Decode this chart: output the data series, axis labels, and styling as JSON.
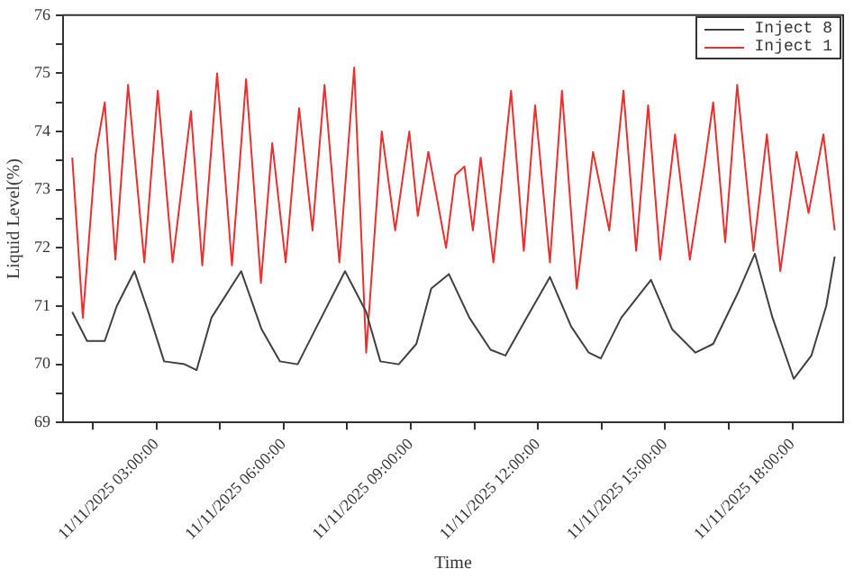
{
  "chart_data": {
    "type": "line",
    "xlabel": "Time",
    "ylabel": "Liquid Level(%)",
    "xlim": [
      "2025-11-11T00:48",
      "2025-11-11T19:12"
    ],
    "ylim": [
      69,
      76
    ],
    "xticks": [
      {
        "value": "2025-11-11T01:30",
        "label": null
      },
      {
        "value": "2025-11-11T03:00",
        "label": "11/11/2025 03:00:00"
      },
      {
        "value": "2025-11-11T04:30",
        "label": null
      },
      {
        "value": "2025-11-11T06:00",
        "label": "11/11/2025 06:00:00"
      },
      {
        "value": "2025-11-11T07:30",
        "label": null
      },
      {
        "value": "2025-11-11T09:00",
        "label": "11/11/2025 09:00:00"
      },
      {
        "value": "2025-11-11T10:30",
        "label": null
      },
      {
        "value": "2025-11-11T12:00",
        "label": "11/11/2025 12:00:00"
      },
      {
        "value": "2025-11-11T13:30",
        "label": null
      },
      {
        "value": "2025-11-11T15:00",
        "label": "11/11/2025 15:00:00"
      },
      {
        "value": "2025-11-11T16:30",
        "label": null
      },
      {
        "value": "2025-11-11T18:00",
        "label": "11/11/2025 18:00:00"
      }
    ],
    "yticks": [
      69,
      {
        "value": 69.5,
        "label": null
      },
      70,
      {
        "value": 70.5,
        "label": null
      },
      71,
      {
        "value": 71.5,
        "label": null
      },
      72,
      {
        "value": 72.5,
        "label": null
      },
      73,
      {
        "value": 73.5,
        "label": null
      },
      74,
      {
        "value": 74.5,
        "label": null
      },
      75,
      {
        "value": 75.5,
        "label": null
      },
      76
    ],
    "grid": false,
    "legend": "top right",
    "marker": "none",
    "line_style": "solid",
    "series": [
      {
        "name": "Inject 8",
        "color": "#404040",
        "x": [
          "2025-11-11T01:01",
          "2025-11-11T01:22",
          "2025-11-11T01:47",
          "2025-11-11T02:04",
          "2025-11-11T02:29",
          "2025-11-11T02:50",
          "2025-11-11T03:11",
          "2025-11-11T03:40",
          "2025-11-11T03:57",
          "2025-11-11T04:18",
          "2025-11-11T05:00",
          "2025-11-11T05:29",
          "2025-11-11T05:55",
          "2025-11-11T06:20",
          "2025-11-11T06:45",
          "2025-11-11T07:27",
          "2025-11-11T07:57",
          "2025-11-11T08:17",
          "2025-11-11T08:43",
          "2025-11-11T09:08",
          "2025-11-11T09:29",
          "2025-11-11T09:54",
          "2025-11-11T10:23",
          "2025-11-11T10:53",
          "2025-11-11T11:14",
          "2025-11-11T11:44",
          "2025-11-11T12:17",
          "2025-11-11T12:47",
          "2025-11-11T13:12",
          "2025-11-11T13:29",
          "2025-11-11T13:58",
          "2025-11-11T14:40",
          "2025-11-11T15:10",
          "2025-11-11T15:43",
          "2025-11-11T16:08",
          "2025-11-11T16:42",
          "2025-11-11T17:07",
          "2025-11-11T17:32",
          "2025-11-11T18:02",
          "2025-11-11T18:27",
          "2025-11-11T18:48",
          "2025-11-11T19:00"
        ],
        "values": [
          70.9,
          70.4,
          70.4,
          71.0,
          71.6,
          70.85,
          70.05,
          70.0,
          69.9,
          70.8,
          71.6,
          70.6,
          70.05,
          70.0,
          70.6,
          71.6,
          70.9,
          70.05,
          70.0,
          70.35,
          71.3,
          71.55,
          70.8,
          70.25,
          70.15,
          70.8,
          71.5,
          70.65,
          70.2,
          70.1,
          70.8,
          71.45,
          70.6,
          70.2,
          70.35,
          71.2,
          71.9,
          70.8,
          69.75,
          70.15,
          71.0,
          71.85
        ]
      },
      {
        "name": "Inject 1",
        "color": "#e8302f",
        "x": [
          "2025-11-11T01:01",
          "2025-11-11T01:16",
          "2025-11-11T01:34",
          "2025-11-11T01:47",
          "2025-11-11T02:02",
          "2025-11-11T02:20",
          "2025-11-11T02:43",
          "2025-11-11T03:02",
          "2025-11-11T03:23",
          "2025-11-11T03:49",
          "2025-11-11T04:05",
          "2025-11-11T04:26",
          "2025-11-11T04:47",
          "2025-11-11T05:07",
          "2025-11-11T05:28",
          "2025-11-11T05:44",
          "2025-11-11T06:03",
          "2025-11-11T06:22",
          "2025-11-11T06:41",
          "2025-11-11T06:58",
          "2025-11-11T07:19",
          "2025-11-11T07:40",
          "2025-11-11T07:57",
          "2025-11-11T08:19",
          "2025-11-11T08:38",
          "2025-11-11T08:58",
          "2025-11-11T09:10",
          "2025-11-11T09:25",
          "2025-11-11T09:50",
          "2025-11-11T10:03",
          "2025-11-11T10:16",
          "2025-11-11T10:28",
          "2025-11-11T10:39",
          "2025-11-11T10:57",
          "2025-11-11T11:22",
          "2025-11-11T11:40",
          "2025-11-11T11:56",
          "2025-11-11T12:17",
          "2025-11-11T12:34",
          "2025-11-11T12:55",
          "2025-11-11T13:18",
          "2025-11-11T13:41",
          "2025-11-11T14:01",
          "2025-11-11T14:19",
          "2025-11-11T14:36",
          "2025-11-11T14:53",
          "2025-11-11T15:14",
          "2025-11-11T15:35",
          "2025-11-11T15:56",
          "2025-11-11T16:08",
          "2025-11-11T16:25",
          "2025-11-11T16:42",
          "2025-11-11T17:05",
          "2025-11-11T17:24",
          "2025-11-11T17:43",
          "2025-11-11T18:06",
          "2025-11-11T18:23",
          "2025-11-11T18:44",
          "2025-11-11T19:00"
        ],
        "values": [
          73.55,
          70.8,
          73.6,
          74.5,
          71.8,
          74.8,
          71.75,
          74.7,
          71.75,
          74.35,
          71.7,
          75.0,
          71.7,
          74.9,
          71.4,
          73.8,
          71.75,
          74.4,
          72.3,
          74.8,
          71.75,
          75.1,
          70.2,
          74.0,
          72.3,
          74.0,
          72.55,
          73.65,
          72.0,
          73.25,
          73.4,
          72.3,
          73.55,
          71.75,
          74.7,
          71.95,
          74.45,
          71.75,
          74.7,
          71.3,
          73.65,
          72.3,
          74.7,
          71.95,
          74.45,
          71.8,
          73.95,
          71.8,
          73.45,
          74.5,
          72.1,
          74.8,
          71.95,
          73.95,
          71.6,
          73.65,
          72.6,
          73.95,
          72.3
        ]
      }
    ]
  }
}
